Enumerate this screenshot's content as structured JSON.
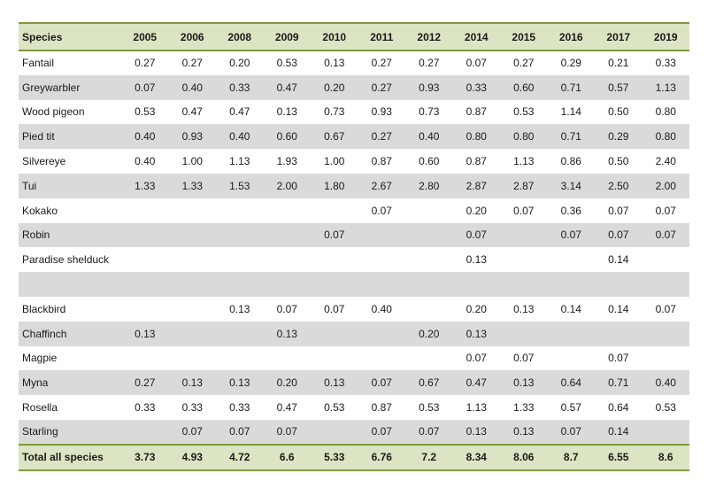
{
  "table": {
    "header": [
      "Species",
      "2005",
      "2006",
      "2008",
      "2009",
      "2010",
      "2011",
      "2012",
      "2014",
      "2015",
      "2016",
      "2017",
      "2019"
    ],
    "rows": [
      [
        "Fantail",
        "0.27",
        "0.27",
        "0.20",
        "0.53",
        "0.13",
        "0.27",
        "0.27",
        "0.07",
        "0.27",
        "0.29",
        "0.21",
        "0.33"
      ],
      [
        "Greywarbler",
        "0.07",
        "0.40",
        "0.33",
        "0.47",
        "0.20",
        "0.27",
        "0.93",
        "0.33",
        "0.60",
        "0.71",
        "0.57",
        "1.13"
      ],
      [
        "Wood pigeon",
        "0.53",
        "0.47",
        "0.47",
        "0.13",
        "0.73",
        "0.93",
        "0.73",
        "0.87",
        "0.53",
        "1.14",
        "0.50",
        "0.80"
      ],
      [
        "Pied tit",
        "0.40",
        "0.93",
        "0.40",
        "0.60",
        "0.67",
        "0.27",
        "0.40",
        "0.80",
        "0.80",
        "0.71",
        "0.29",
        "0.80"
      ],
      [
        "Silvereye",
        "0.40",
        "1.00",
        "1.13",
        "1.93",
        "1.00",
        "0.87",
        "0.60",
        "0.87",
        "1.13",
        "0.86",
        "0.50",
        "2.40"
      ],
      [
        "Tui",
        "1.33",
        "1.33",
        "1.53",
        "2.00",
        "1.80",
        "2.67",
        "2.80",
        "2.87",
        "2.87",
        "3.14",
        "2.50",
        "2.00"
      ],
      [
        "Kokako",
        "",
        "",
        "",
        "",
        "",
        "0.07",
        "",
        "0.20",
        "0.07",
        "0.36",
        "0.07",
        "0.07"
      ],
      [
        "Robin",
        "",
        "",
        "",
        "",
        "0.07",
        "",
        "",
        "0.07",
        "",
        "0.07",
        "0.07",
        "0.07"
      ],
      [
        "Paradise shelduck",
        "",
        "",
        "",
        "",
        "",
        "",
        "",
        "0.13",
        "",
        "",
        "0.14",
        ""
      ],
      [
        "",
        "",
        "",
        "",
        "",
        "",
        "",
        "",
        "",
        "",
        "",
        "",
        ""
      ],
      [
        "Blackbird",
        "",
        "",
        "0.13",
        "0.07",
        "0.07",
        "0.40",
        "",
        "0.20",
        "0.13",
        "0.14",
        "0.14",
        "0.07"
      ],
      [
        "Chaffinch",
        "0.13",
        "",
        "",
        "0.13",
        "",
        "",
        "0.20",
        "0.13",
        "",
        "",
        "",
        ""
      ],
      [
        "Magpie",
        "",
        "",
        "",
        "",
        "",
        "",
        "",
        "0.07",
        "0.07",
        "",
        "0.07",
        ""
      ],
      [
        "Myna",
        "0.27",
        "0.13",
        "0.13",
        "0.20",
        "0.13",
        "0.07",
        "0.67",
        "0.47",
        "0.13",
        "0.64",
        "0.71",
        "0.40"
      ],
      [
        "Rosella",
        "0.33",
        "0.33",
        "0.33",
        "0.47",
        "0.53",
        "0.87",
        "0.53",
        "1.13",
        "1.33",
        "0.57",
        "0.64",
        "0.53"
      ],
      [
        "Starling",
        "",
        "0.07",
        "0.07",
        "0.07",
        "",
        "0.07",
        "0.07",
        "0.13",
        "0.13",
        "0.07",
        "0.14",
        ""
      ]
    ],
    "total": [
      "Total all species",
      "3.73",
      "4.93",
      "4.72",
      "6.6",
      "5.33",
      "6.76",
      "7.2",
      "8.34",
      "8.06",
      "8.7",
      "6.55",
      "8.6"
    ]
  }
}
